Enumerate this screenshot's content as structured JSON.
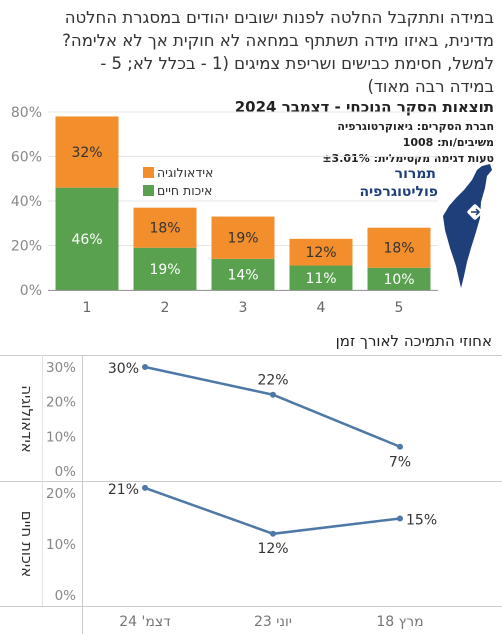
{
  "question": {
    "lines": [
      "במידה ותתקבל החלטה לפנות ישובים יהודים במסגרת החלטה",
      "מדינית, באיזו מידה תשתתף במחאה לא חוקית אך לא אלימה?",
      "למשל, חסימת כבישים ושריפת צמיגים (1 - בכלל לא; 5 -",
      "במידה רבה מאוד)"
    ]
  },
  "results_title": "תוצאות הסקר הנוכחי - דצמבר 2024",
  "meta": {
    "pollster": "חברת הסקרים: גיאוקרטוגרפיה",
    "respondents": "משיבים/ות: 1008",
    "error": "טעות דגימה מקסימלית: ±3.01%"
  },
  "logo": {
    "line1": "תמרור",
    "line2": "פוליטוגרפיה",
    "map_color": "#1f3f7a"
  },
  "trend_title": "אחוזי התמיכה לאורך זמן",
  "colors": {
    "ideology": "#f28e2b",
    "livelihood": "#59a14f",
    "line": "#4e79a7"
  },
  "chart_data": [
    {
      "type": "bar",
      "stacked": true,
      "categories": [
        "1",
        "2",
        "3",
        "4",
        "5"
      ],
      "series": [
        {
          "name": "איכות חיים",
          "values": [
            46,
            19,
            14,
            11,
            10
          ]
        },
        {
          "name": "אידאולוגיה",
          "values": [
            32,
            18,
            19,
            12,
            18
          ]
        }
      ],
      "ylim": [
        0,
        80
      ],
      "yticks": [
        "0%",
        "20%",
        "40%",
        "60%",
        "80%"
      ],
      "grid": true,
      "legend": "top-right"
    },
    {
      "type": "line",
      "x": [
        "דצמ' 24",
        "יוני 23",
        "מרץ 18"
      ],
      "panels": [
        {
          "name": "אידאולוגיה",
          "values": [
            30,
            22,
            7
          ],
          "ylim": [
            0,
            30
          ],
          "yticks": [
            "0%",
            "10%",
            "20%",
            "30%"
          ]
        },
        {
          "name": "איכות חיים",
          "values": [
            21,
            12,
            15
          ],
          "ylim": [
            0,
            20
          ],
          "yticks": [
            "0%",
            "10%",
            "20%"
          ]
        }
      ]
    }
  ]
}
